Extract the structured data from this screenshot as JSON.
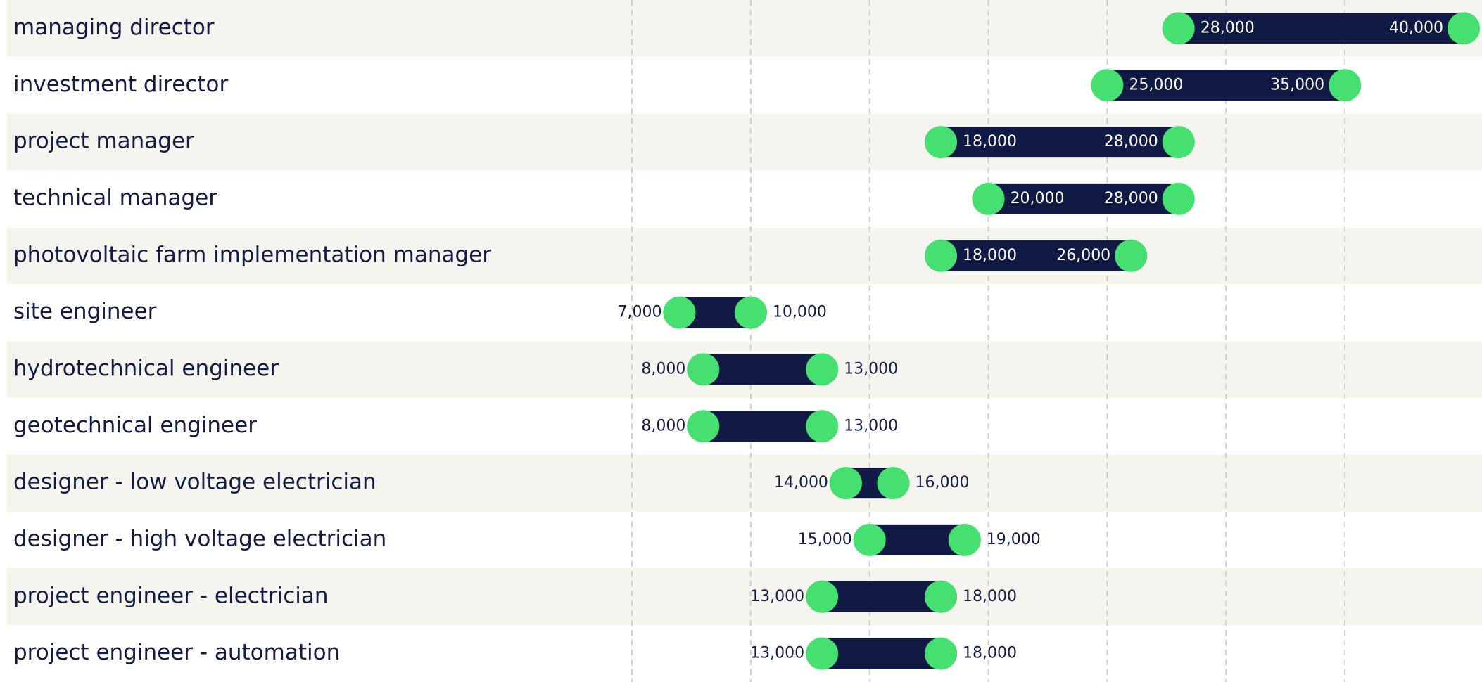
{
  "chart_data": {
    "type": "range",
    "categories": [
      "managing director",
      "investment director",
      "project manager",
      "technical manager",
      "photovoltaic farm implementation manager",
      "site engineer",
      "hydrotechnical engineer",
      "geotechnical engineer",
      "designer - low voltage electrician",
      "designer - high voltage electrician",
      "project engineer - electrician",
      "project engineer - automation"
    ],
    "low": {
      "values": [
        28000,
        25000,
        18000,
        20000,
        18000,
        7000,
        8000,
        8000,
        14000,
        15000,
        13000,
        13000
      ],
      "value_labels": [
        "28,000",
        "25,000",
        "18,000",
        "20,000",
        "18,000",
        "7,000",
        "8,000",
        "8,000",
        "14,000",
        "15,000",
        "13,000",
        "13,000"
      ]
    },
    "high": {
      "values": [
        40000,
        35000,
        28000,
        28000,
        26000,
        10000,
        13000,
        13000,
        16000,
        19000,
        18000,
        18000
      ],
      "value_labels": [
        "40,000",
        "35,000",
        "28,000",
        "28,000",
        "26,000",
        "10,000",
        "13,000",
        "13,000",
        "16,000",
        "19,000",
        "18,000",
        "18,000"
      ]
    },
    "bar_color": "#111a44",
    "dot_color": "#45e06f",
    "xlim": [
      5000,
      40000
    ],
    "xticks": [
      5000,
      10000,
      15000,
      20000,
      25000,
      30000,
      35000
    ],
    "grid": true
  }
}
